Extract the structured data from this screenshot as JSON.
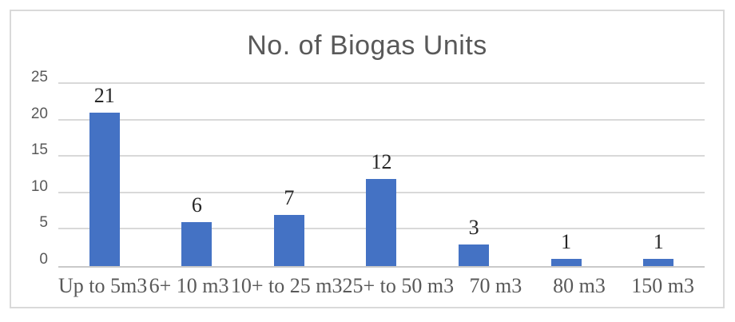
{
  "chart_data": {
    "type": "bar",
    "title": "No. of Biogas Units",
    "categories": [
      "Up to 5m3",
      "6+ 10 m3",
      "10+ to 25 m3",
      "25+ to 50 m3",
      "70 m3",
      "80 m3",
      "150 m3"
    ],
    "values": [
      21,
      6,
      7,
      12,
      3,
      1,
      1
    ],
    "data_labels": [
      "21",
      "6",
      "7",
      "12",
      "3",
      "1",
      "1"
    ],
    "xlabel": "",
    "ylabel": "",
    "ylim": [
      0,
      25
    ],
    "yticks": [
      0,
      5,
      10,
      15,
      20,
      25
    ],
    "grid": "horizontal",
    "legend": "none",
    "colors": {
      "bar": "#4472C4",
      "title_text": "#595959",
      "axis_tick_text": "#595959",
      "category_text": "#595959",
      "data_label_text": "#262626",
      "gridline": "#D9D9D9",
      "axis_line": "#C9C9C9",
      "chart_border": "#D9D9D9",
      "background": "#FFFFFF"
    }
  }
}
